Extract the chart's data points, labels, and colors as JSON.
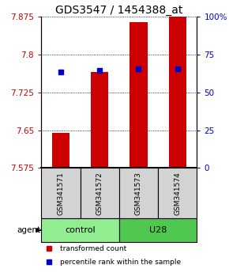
{
  "title": "GDS3547 / 1454388_at",
  "samples": [
    "GSM341571",
    "GSM341572",
    "GSM341573",
    "GSM341574"
  ],
  "bar_values": [
    7.645,
    7.765,
    7.865,
    7.875
  ],
  "bar_baseline": 7.575,
  "blue_dot_values": [
    7.765,
    7.768,
    7.772,
    7.772
  ],
  "ymin": 7.575,
  "ymax": 7.875,
  "yticks_left": [
    7.575,
    7.65,
    7.725,
    7.8,
    7.875
  ],
  "yticks_right_vals": [
    0,
    25,
    50,
    75,
    100
  ],
  "yticks_right_labels": [
    "0",
    "25",
    "50",
    "75",
    "100%"
  ],
  "bar_color": "#cc0000",
  "dot_color": "#0000cc",
  "groups": [
    {
      "label": "control",
      "indices": [
        0,
        1
      ],
      "color": "#90ee90"
    },
    {
      "label": "U28",
      "indices": [
        2,
        3
      ],
      "color": "#50c850"
    }
  ],
  "agent_label": "agent",
  "legend_bar_label": "transformed count",
  "legend_dot_label": "percentile rank within the sample",
  "title_fontsize": 10,
  "axis_label_color_left": "#cc0000",
  "axis_label_color_right": "#0000cc",
  "bar_width": 0.45
}
